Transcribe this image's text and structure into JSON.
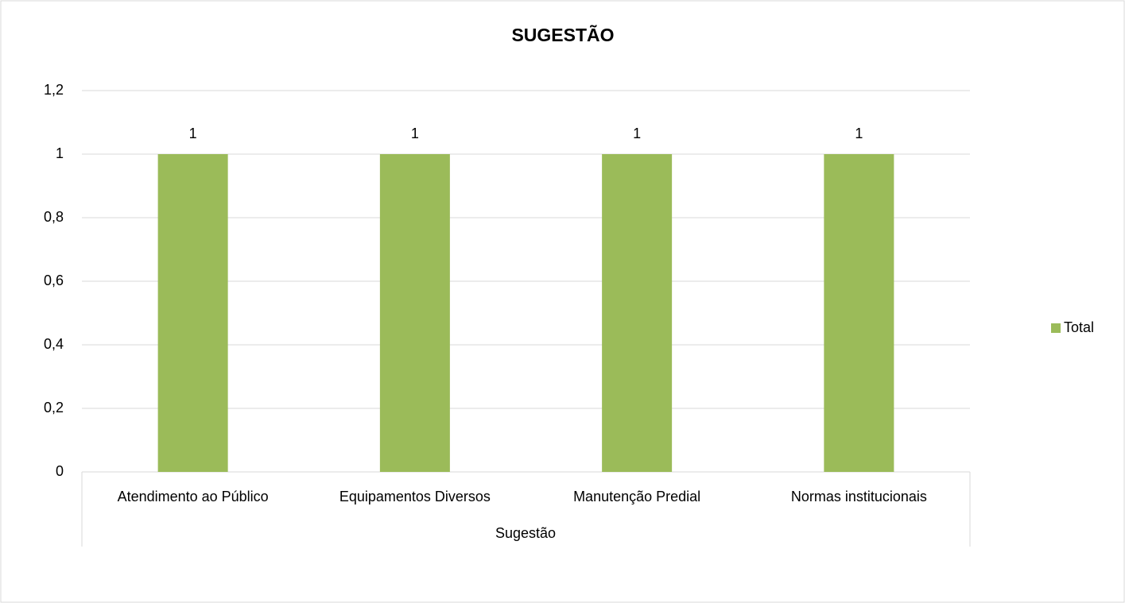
{
  "chart_data": {
    "type": "bar",
    "title": "SUGESTÃO",
    "categories": [
      "Atendimento ao Público",
      "Equipamentos Diversos",
      "Manutenção Predial",
      "Normas institucionais"
    ],
    "series": [
      {
        "name": "Total",
        "color": "#9bbb59",
        "values": [
          1,
          1,
          1,
          1
        ]
      }
    ],
    "x_label": "Sugestão",
    "ylim": [
      0,
      1.2
    ],
    "yticks": [
      0,
      {
        "value": 0.2,
        "label": "0,2"
      },
      {
        "value": 0.4,
        "label": "0,4"
      },
      {
        "value": 0.6,
        "label": "0,6"
      },
      {
        "value": 0.8,
        "label": "0,8"
      },
      1,
      {
        "value": 1.2,
        "label": "1,2"
      }
    ],
    "grid": true,
    "legend": "right"
  }
}
